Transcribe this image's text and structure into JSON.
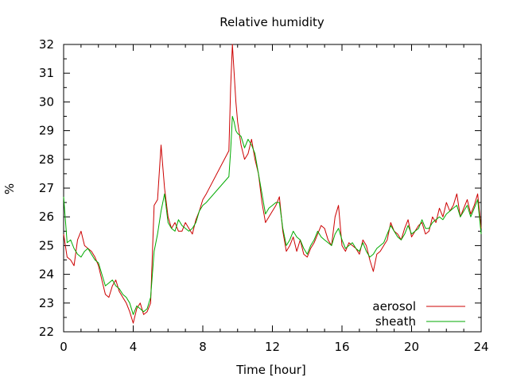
{
  "chart_data": {
    "type": "line",
    "title": "Relative humidity",
    "xlabel": "Time [hour]",
    "ylabel": "%",
    "xlim": [
      0,
      24
    ],
    "ylim": [
      22,
      32
    ],
    "xticks": [
      0,
      4,
      8,
      12,
      16,
      20,
      24
    ],
    "yticks": [
      22,
      23,
      24,
      25,
      26,
      27,
      28,
      29,
      30,
      31,
      32
    ],
    "grid": false,
    "legend_position": "bottom-right",
    "series": [
      {
        "name": "aerosol",
        "color": "#cc0000",
        "x": [
          0.0,
          0.2,
          0.4,
          0.6,
          0.8,
          1.0,
          1.2,
          1.4,
          1.6,
          1.8,
          2.0,
          2.2,
          2.4,
          2.6,
          2.8,
          3.0,
          3.2,
          3.4,
          3.6,
          3.8,
          4.0,
          4.2,
          4.4,
          4.6,
          4.8,
          5.0,
          5.2,
          5.4,
          5.6,
          5.8,
          6.0,
          6.2,
          6.4,
          6.6,
          6.8,
          7.0,
          7.2,
          7.4,
          7.6,
          7.8,
          8.0,
          8.2,
          9.5,
          9.6,
          9.7,
          9.8,
          9.9,
          10.0,
          10.2,
          10.4,
          10.6,
          10.8,
          11.0,
          11.2,
          11.4,
          11.6,
          11.8,
          12.0,
          12.2,
          12.4,
          12.6,
          12.8,
          13.0,
          13.2,
          13.4,
          13.6,
          13.8,
          14.0,
          14.2,
          14.4,
          14.6,
          14.8,
          15.0,
          15.2,
          15.4,
          15.6,
          15.8,
          16.0,
          16.2,
          16.4,
          16.6,
          16.8,
          17.0,
          17.2,
          17.4,
          17.6,
          17.8,
          18.0,
          18.2,
          18.4,
          18.6,
          18.8,
          19.0,
          19.2,
          19.4,
          19.6,
          19.8,
          20.0,
          20.2,
          20.4,
          20.6,
          20.8,
          21.0,
          21.2,
          21.4,
          21.6,
          21.8,
          22.0,
          22.2,
          22.4,
          22.6,
          22.8,
          23.0,
          23.2,
          23.4,
          23.6,
          23.8,
          24.0
        ],
        "y": [
          25.4,
          24.6,
          24.5,
          24.3,
          25.2,
          25.5,
          25.0,
          24.9,
          24.8,
          24.6,
          24.3,
          23.8,
          23.3,
          23.2,
          23.6,
          23.8,
          23.4,
          23.2,
          23.0,
          22.7,
          22.3,
          22.8,
          23.0,
          22.6,
          22.7,
          23.0,
          26.4,
          26.6,
          28.5,
          27.0,
          26.0,
          25.6,
          25.8,
          25.5,
          25.5,
          25.8,
          25.6,
          25.4,
          25.9,
          26.2,
          26.6,
          26.8,
          28.3,
          30.5,
          32.0,
          31.0,
          30.0,
          29.3,
          28.5,
          28.0,
          28.2,
          28.7,
          28.0,
          27.5,
          26.5,
          25.8,
          26.0,
          26.2,
          26.4,
          26.7,
          25.5,
          24.8,
          25.0,
          25.3,
          24.8,
          25.2,
          24.7,
          24.6,
          24.9,
          25.1,
          25.4,
          25.7,
          25.6,
          25.2,
          25.0,
          26.0,
          26.4,
          25.0,
          24.8,
          25.1,
          25.0,
          24.9,
          24.7,
          25.2,
          25.0,
          24.5,
          24.1,
          24.7,
          24.8,
          25.0,
          25.2,
          25.8,
          25.5,
          25.4,
          25.2,
          25.6,
          25.9,
          25.3,
          25.5,
          25.7,
          25.8,
          25.4,
          25.5,
          26.0,
          25.8,
          26.3,
          26.0,
          26.5,
          26.2,
          26.4,
          26.8,
          26.0,
          26.3,
          26.6,
          26.1,
          26.4,
          26.8,
          25.6
        ],
        "note": ""
      },
      {
        "name": "sheath",
        "color": "#00aa00",
        "x": [
          0.0,
          0.2,
          0.4,
          0.6,
          0.8,
          1.0,
          1.2,
          1.4,
          1.6,
          1.8,
          2.0,
          2.2,
          2.4,
          2.6,
          2.8,
          3.0,
          3.2,
          3.4,
          3.6,
          3.8,
          4.0,
          4.2,
          4.4,
          4.6,
          4.8,
          5.0,
          5.2,
          5.4,
          5.6,
          5.8,
          6.0,
          6.2,
          6.4,
          6.6,
          6.8,
          7.0,
          7.2,
          7.4,
          7.6,
          7.8,
          8.0,
          8.2,
          9.5,
          9.6,
          9.7,
          9.8,
          9.9,
          10.0,
          10.2,
          10.4,
          10.6,
          10.8,
          11.0,
          11.2,
          11.4,
          11.6,
          11.8,
          12.0,
          12.2,
          12.4,
          12.6,
          12.8,
          13.0,
          13.2,
          13.4,
          13.6,
          13.8,
          14.0,
          14.2,
          14.4,
          14.6,
          14.8,
          15.0,
          15.2,
          15.4,
          15.6,
          15.8,
          16.0,
          16.2,
          16.4,
          16.6,
          16.8,
          17.0,
          17.2,
          17.4,
          17.6,
          17.8,
          18.0,
          18.2,
          18.4,
          18.6,
          18.8,
          19.0,
          19.2,
          19.4,
          19.6,
          19.8,
          20.0,
          20.2,
          20.4,
          20.6,
          20.8,
          21.0,
          21.2,
          21.4,
          21.6,
          21.8,
          22.0,
          22.2,
          22.4,
          22.6,
          22.8,
          23.0,
          23.2,
          23.4,
          23.6,
          23.8,
          24.0
        ],
        "y": [
          26.7,
          25.1,
          25.2,
          24.9,
          24.7,
          24.6,
          24.8,
          24.9,
          24.7,
          24.5,
          24.4,
          24.0,
          23.6,
          23.7,
          23.8,
          23.6,
          23.5,
          23.3,
          23.2,
          23.0,
          22.6,
          22.9,
          22.8,
          22.7,
          22.8,
          23.2,
          24.8,
          25.4,
          26.2,
          26.8,
          25.8,
          25.6,
          25.5,
          25.9,
          25.7,
          25.6,
          25.5,
          25.6,
          25.8,
          26.2,
          26.4,
          26.5,
          27.4,
          28.3,
          29.5,
          29.3,
          29.0,
          28.9,
          28.8,
          28.4,
          28.7,
          28.5,
          28.2,
          27.5,
          26.8,
          26.1,
          26.3,
          26.4,
          26.5,
          26.5,
          25.6,
          25.0,
          25.2,
          25.5,
          25.3,
          25.2,
          24.9,
          24.7,
          25.0,
          25.2,
          25.5,
          25.3,
          25.2,
          25.1,
          25.0,
          25.4,
          25.6,
          25.2,
          24.9,
          25.0,
          25.1,
          24.9,
          24.8,
          25.1,
          24.8,
          24.6,
          24.7,
          24.9,
          25.0,
          25.1,
          25.4,
          25.7,
          25.5,
          25.3,
          25.2,
          25.4,
          25.7,
          25.4,
          25.5,
          25.6,
          25.9,
          25.6,
          25.6,
          25.8,
          25.9,
          26.0,
          25.9,
          26.1,
          26.2,
          26.3,
          26.4,
          26.0,
          26.2,
          26.4,
          26.0,
          26.3,
          26.6,
          25.4
        ]
      }
    ]
  }
}
